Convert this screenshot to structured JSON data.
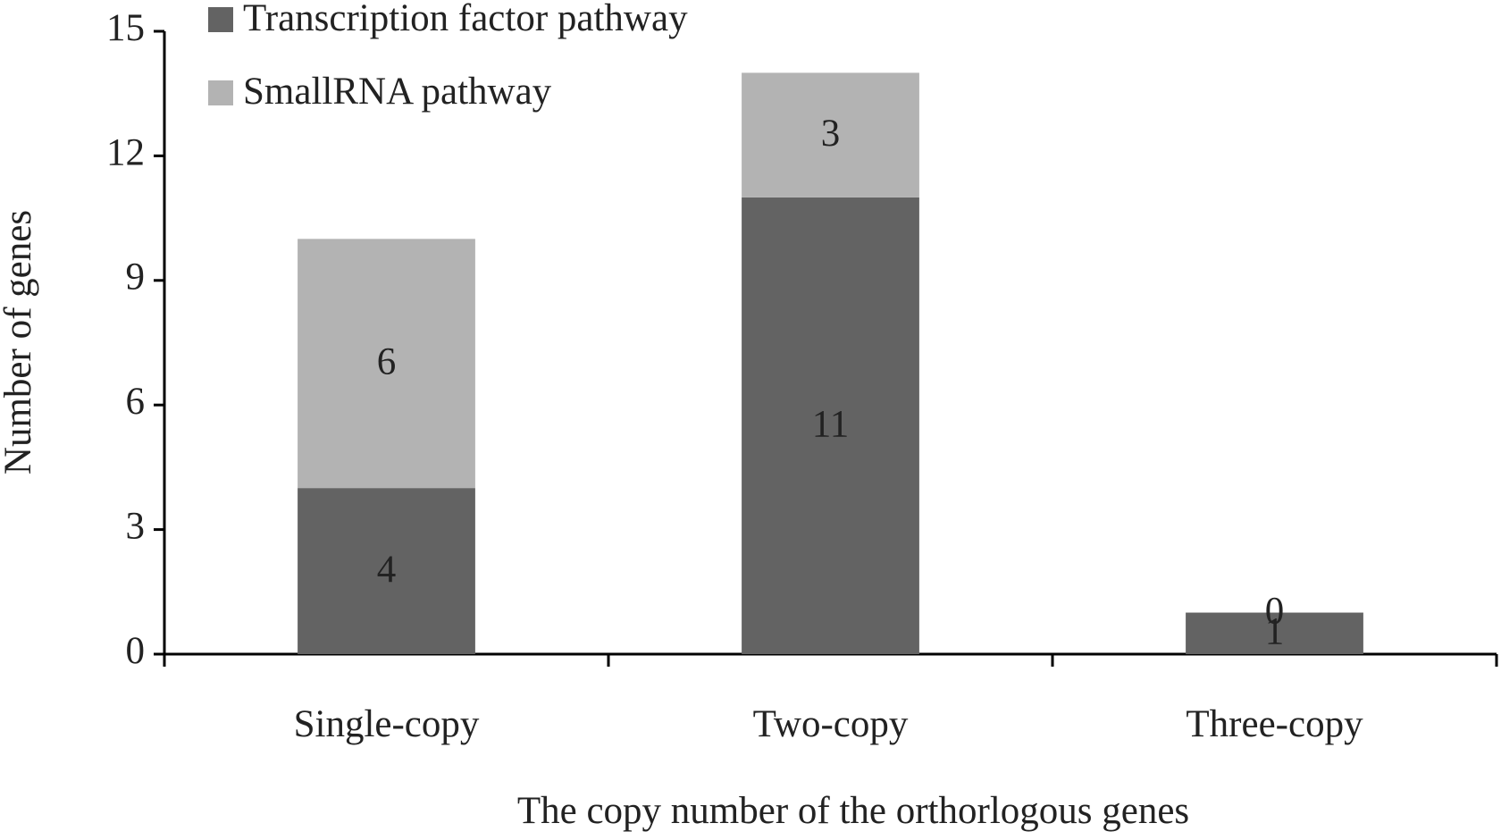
{
  "chart_data": {
    "type": "stacked_bar",
    "y_label": "Number of genes",
    "x_label": "The copy number of the orthorlogous genes",
    "categories": [
      "Single-copy",
      "Two-copy",
      "Three-copy"
    ],
    "series": [
      {
        "name": "Transcription factor pathway",
        "color": "#636363",
        "values": [
          4,
          11,
          1
        ]
      },
      {
        "name": "SmallRNA pathway",
        "color": "#b3b3b3",
        "values": [
          6,
          3,
          0
        ]
      }
    ],
    "ylim": [
      0,
      15
    ],
    "yticks": [
      0,
      3,
      6,
      9,
      12,
      15
    ],
    "grid": false,
    "legend": "top-left"
  }
}
